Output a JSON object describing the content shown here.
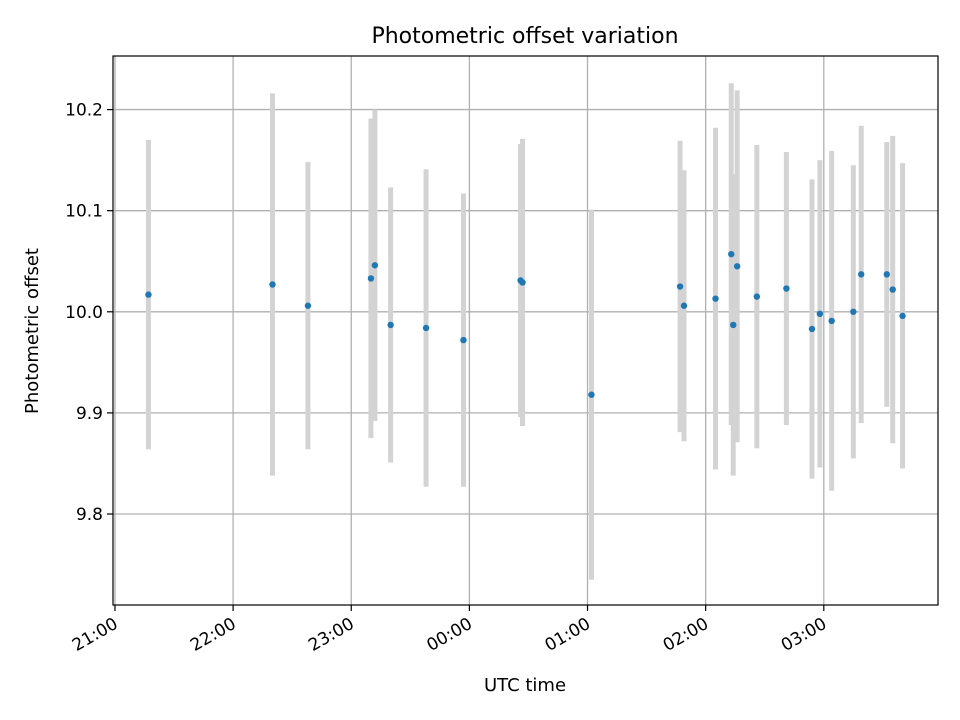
{
  "chart_data": {
    "type": "scatter",
    "title": "Photometric offset variation",
    "xlabel": "UTC time",
    "ylabel": "Photometric offset",
    "x_tick_labels": [
      "21:00",
      "22:00",
      "23:00",
      "00:00",
      "01:00",
      "02:00",
      "03:00"
    ],
    "y_tick_labels": [
      "9.8",
      "9.9",
      "10.0",
      "10.1",
      "10.2"
    ],
    "y_ticks": [
      9.8,
      9.9,
      10.0,
      10.1,
      10.2
    ],
    "ylim": [
      9.71,
      10.253
    ],
    "x_minutes_range": [
      -1,
      418
    ],
    "grid": true,
    "colors": {
      "point": "#1f77b4",
      "errorbar": "#d3d3d3",
      "grid": "#b0b0b0",
      "axis": "#000000"
    },
    "x_tick_times": [
      "21:00",
      "22:00",
      "23:00",
      "00:00",
      "01:00",
      "02:00",
      "03:00"
    ],
    "points": [
      {
        "time": "21:17",
        "y": 10.017,
        "err": 0.153
      },
      {
        "time": "22:20",
        "y": 10.027,
        "err": 0.189
      },
      {
        "time": "22:38",
        "y": 10.006,
        "err": 0.142
      },
      {
        "time": "23:10",
        "y": 10.033,
        "err": 0.158
      },
      {
        "time": "23:12",
        "y": 10.046,
        "err": 0.154
      },
      {
        "time": "23:20",
        "y": 9.987,
        "err": 0.136
      },
      {
        "time": "23:38",
        "y": 9.984,
        "err": 0.157
      },
      {
        "time": "23:57",
        "y": 9.972,
        "err": 0.145
      },
      {
        "time": "00:26",
        "y": 10.031,
        "err": 0.135
      },
      {
        "time": "00:27",
        "y": 10.029,
        "err": 0.142
      },
      {
        "time": "01:02",
        "y": 9.918,
        "err": 0.183
      },
      {
        "time": "01:47",
        "y": 10.025,
        "err": 0.144
      },
      {
        "time": "01:49",
        "y": 10.006,
        "err": 0.134
      },
      {
        "time": "02:05",
        "y": 10.013,
        "err": 0.169
      },
      {
        "time": "02:13",
        "y": 10.057,
        "err": 0.169
      },
      {
        "time": "02:14",
        "y": 9.987,
        "err": 0.149
      },
      {
        "time": "02:16",
        "y": 10.045,
        "err": 0.174
      },
      {
        "time": "02:26",
        "y": 10.015,
        "err": 0.15
      },
      {
        "time": "02:41",
        "y": 10.023,
        "err": 0.135
      },
      {
        "time": "02:54",
        "y": 9.983,
        "err": 0.148
      },
      {
        "time": "02:58",
        "y": 9.998,
        "err": 0.152
      },
      {
        "time": "03:04",
        "y": 9.991,
        "err": 0.168
      },
      {
        "time": "03:15",
        "y": 10.0,
        "err": 0.145
      },
      {
        "time": "03:19",
        "y": 10.037,
        "err": 0.147
      },
      {
        "time": "03:32",
        "y": 10.037,
        "err": 0.131
      },
      {
        "time": "03:35",
        "y": 10.022,
        "err": 0.152
      },
      {
        "time": "03:40",
        "y": 9.996,
        "err": 0.151
      }
    ]
  }
}
